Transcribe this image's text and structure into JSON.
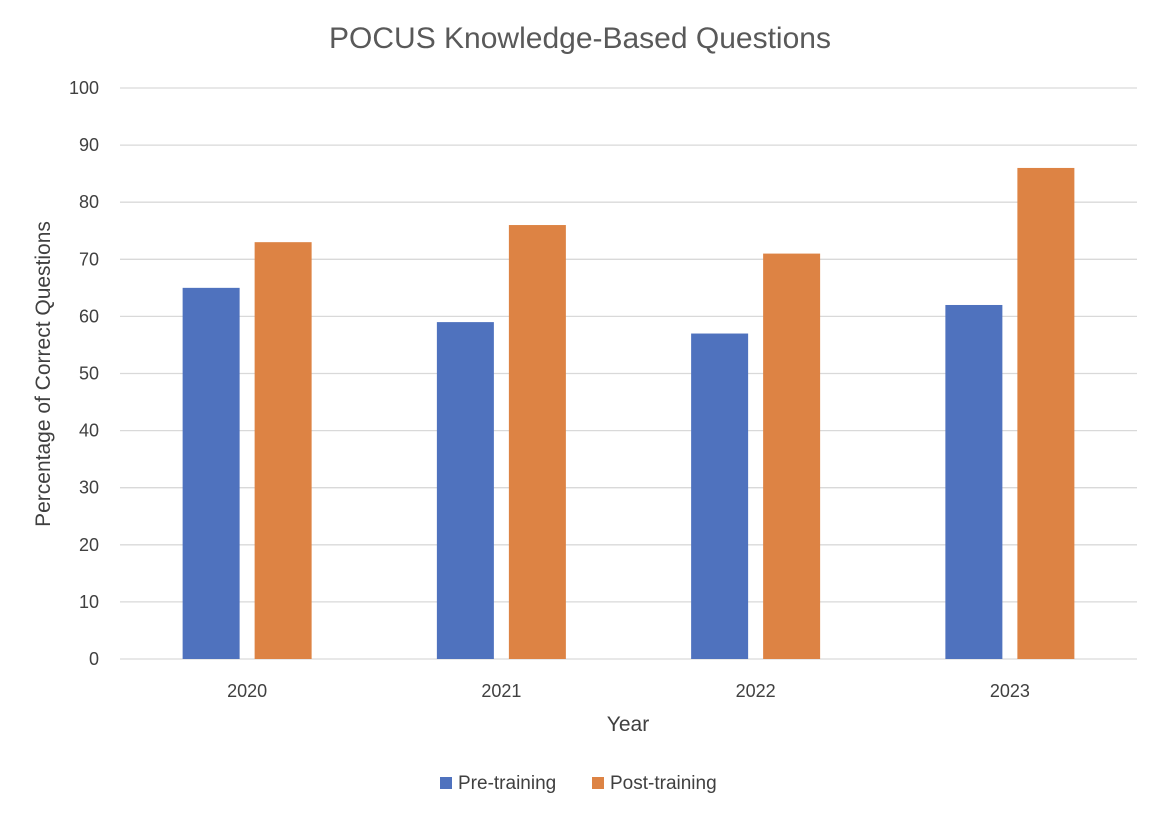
{
  "chart_data": {
    "type": "bar",
    "title": "POCUS Knowledge-Based Questions",
    "xlabel": "Year",
    "ylabel": "Percentage of Correct Questions",
    "categories": [
      "2020",
      "2021",
      "2022",
      "2023"
    ],
    "series": [
      {
        "name": "Pre-training",
        "values": [
          65,
          59,
          57,
          62
        ],
        "color": "#4F72BE"
      },
      {
        "name": "Post-training",
        "values": [
          73,
          76,
          71,
          86
        ],
        "color": "#DD8344"
      }
    ],
    "ylim": [
      0,
      100
    ],
    "yticks": [
      0,
      10,
      20,
      30,
      40,
      50,
      60,
      70,
      80,
      90,
      100
    ],
    "grid": true,
    "legend_position": "bottom"
  },
  "colors": {
    "gridline": "#D9D9D9",
    "axis_line": "#D9D9D9"
  }
}
